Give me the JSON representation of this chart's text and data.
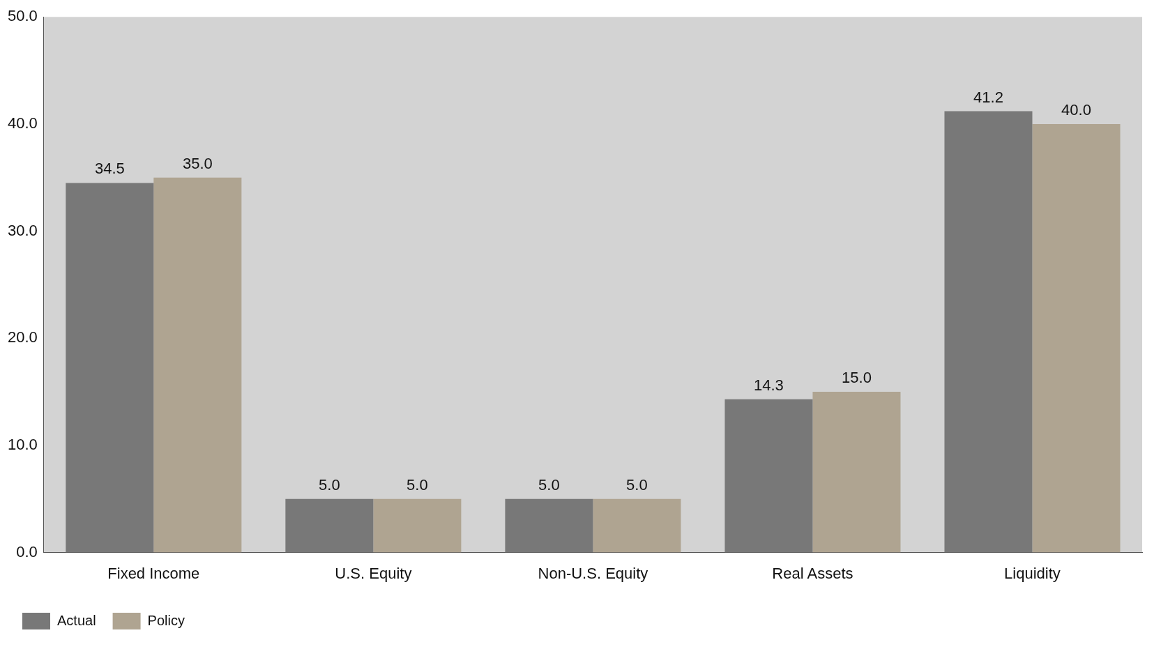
{
  "chart_data": {
    "type": "bar",
    "categories": [
      "Fixed Income",
      "U.S. Equity",
      "Non-U.S. Equity",
      "Real Assets",
      "Liquidity"
    ],
    "series": [
      {
        "name": "Actual",
        "color": "#787878",
        "values": [
          34.5,
          5.0,
          5.0,
          14.3,
          41.2
        ],
        "value_labels": [
          "34.5",
          "5.0",
          "5.0",
          "14.3",
          "41.2"
        ]
      },
      {
        "name": "Policy",
        "color": "#afa491",
        "values": [
          35.0,
          5.0,
          5.0,
          15.0,
          40.0
        ],
        "value_labels": [
          "35.0",
          "5.0",
          "5.0",
          "15.0",
          "40.0"
        ]
      }
    ],
    "ylim": [
      0,
      50
    ],
    "yticks": [
      {
        "value": 0,
        "label": "0.0"
      },
      {
        "value": 10,
        "label": "10.0"
      },
      {
        "value": 20,
        "label": "20.0"
      },
      {
        "value": 30,
        "label": "30.0"
      },
      {
        "value": 40,
        "label": "40.0"
      },
      {
        "value": 50,
        "label": "50.0"
      }
    ],
    "grid": false,
    "legend": "bottom left"
  }
}
